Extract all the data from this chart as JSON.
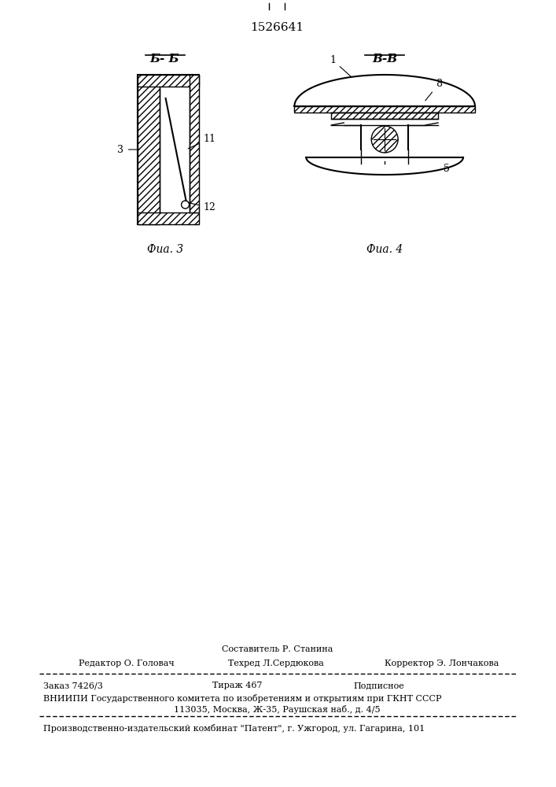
{
  "patent_number": "1526641",
  "bg_color": "#ffffff",
  "line_color": "#000000",
  "hatch_color": "#000000",
  "fig3_label": "Б- Б",
  "fig4_label": "В-В",
  "caption3": "Фиа. 3",
  "caption4": "Фиа. 4",
  "label3": "3",
  "label11": "11",
  "label12": "12",
  "label1": "1",
  "label5": "5",
  "label8": "8",
  "editor_line": "Редактор О. Головач",
  "compiler_line": "Составитель Р. Станина",
  "techred_line": "Техред Л.Сердюкова",
  "corrector_line": "Корректор Э. Лончакова",
  "order_line": "Заказ 7426/3",
  "tirazh_line": "Тираж 467",
  "podpisnoe_line": "Подписное",
  "vniipи_line": "ВНИИПИ Государственного комитета по изобретениям и открытиям при ГКНТ СССР",
  "address_line": "113035, Москва, Ж-35, Раушская наб., д. 4/5",
  "factory_line": "Производственно-издательский комбинат \"Патент\", г. Ужгород, ул. Гагарина, 101"
}
